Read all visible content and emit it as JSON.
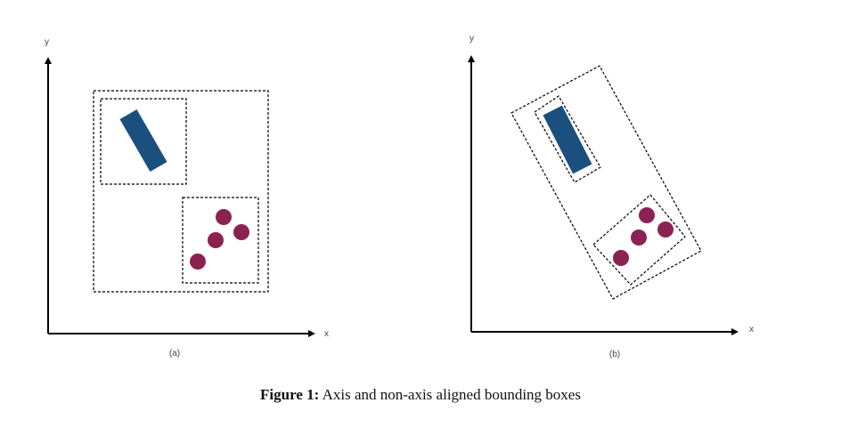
{
  "panels": [
    {
      "label": "(a)",
      "x_axis": "x",
      "y_axis": "y"
    },
    {
      "label": "(b)",
      "x_axis": "x",
      "y_axis": "y"
    }
  ],
  "caption": {
    "prefix": "Figure 1:",
    "text": "Axis and non-axis aligned bounding boxes"
  },
  "colors": {
    "rectangle": "#1b4f7e",
    "circles": "#8b2252",
    "axes": "#000000",
    "box_outline": "#000000"
  }
}
